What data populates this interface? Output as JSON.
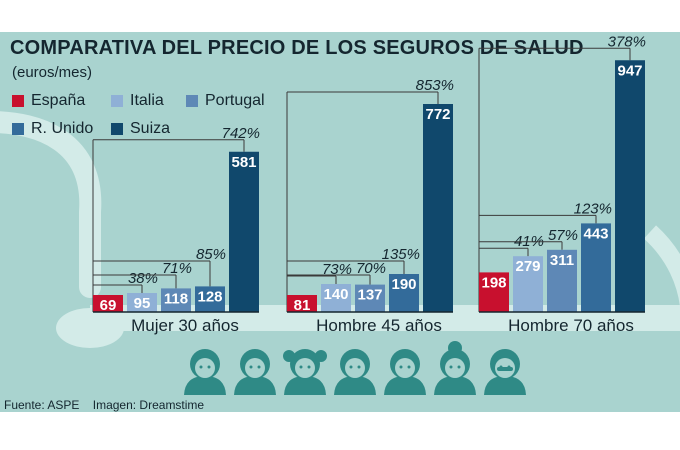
{
  "title": "COMPARATIVA DEL PRECIO DE LOS SEGUROS DE SALUD",
  "subtitle": "(euros/mes)",
  "legend": [
    {
      "label": "España",
      "color": "#c8102e"
    },
    {
      "label": "Italia",
      "color": "#8fb0d6"
    },
    {
      "label": "Portugal",
      "color": "#5e88b6"
    },
    {
      "label": "R. Unido",
      "color": "#336b9a"
    },
    {
      "label": "Suiza",
      "color": "#10486c"
    }
  ],
  "footer": {
    "source": "Fuente: ASPE",
    "image_credit": "Imagen: Dreamstime"
  },
  "icons": [
    "baby-icon",
    "child-icon",
    "girl-icon",
    "woman-icon",
    "man-icon",
    "elderly-woman-icon",
    "elderly-man-icon"
  ],
  "chart_data": {
    "type": "bar",
    "title": "COMPARATIVA DEL PRECIO DE LOS SEGUROS DE SALUD",
    "ylabel": "euros/mes",
    "categories": [
      "Mujer 30 años",
      "Hombre 45 años",
      "Hombre 70 años"
    ],
    "series": [
      {
        "name": "España",
        "values": [
          69,
          81,
          198
        ]
      },
      {
        "name": "Italia",
        "values": [
          95,
          140,
          279
        ]
      },
      {
        "name": "Portugal",
        "values": [
          118,
          137,
          311
        ]
      },
      {
        "name": "R. Unido",
        "values": [
          128,
          190,
          443
        ]
      },
      {
        "name": "Suiza",
        "values": [
          581,
          772,
          947
        ]
      }
    ],
    "percent_labels": [
      [
        "38%",
        "71%",
        "85%",
        "742%"
      ],
      [
        "73%",
        "70%",
        "135%",
        "853%"
      ],
      [
        "41%",
        "57%",
        "123%",
        "378%"
      ]
    ]
  }
}
